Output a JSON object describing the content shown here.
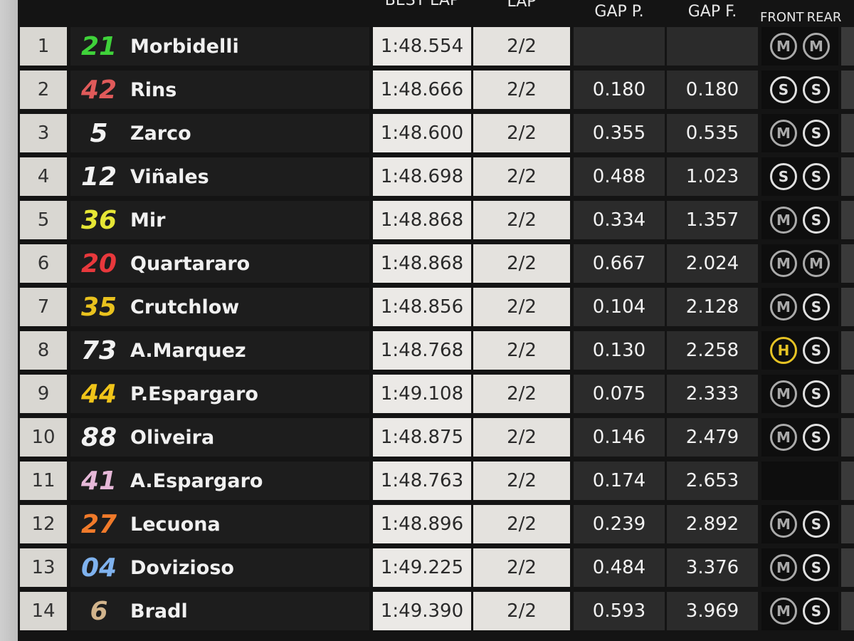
{
  "header": {
    "best_lap": "BEST LAP",
    "lap": "LAP",
    "gap_p": "GAP P.",
    "gap_f": "GAP F.",
    "front": "FRONT",
    "rear": "REAR"
  },
  "rows": [
    {
      "pos": "1",
      "number": "21",
      "number_color": "#3fd23a",
      "name": "Morbidelli",
      "best_lap": "1:48.554",
      "lap": "2/2",
      "gap_p": null,
      "gap_f": null,
      "front": "M",
      "rear": "M"
    },
    {
      "pos": "2",
      "number": "42",
      "number_color": "#e05a5a",
      "name": "Rins",
      "best_lap": "1:48.666",
      "lap": "2/2",
      "gap_p": "0.180",
      "gap_f": "0.180",
      "front": "S",
      "rear": "S"
    },
    {
      "pos": "3",
      "number": "5",
      "number_color": "#f2f2f2",
      "name": "Zarco",
      "best_lap": "1:48.600",
      "lap": "2/2",
      "gap_p": "0.355",
      "gap_f": "0.535",
      "front": "M",
      "rear": "S"
    },
    {
      "pos": "4",
      "number": "12",
      "number_color": "#f2f2f2",
      "name": "Viñales",
      "best_lap": "1:48.698",
      "lap": "2/2",
      "gap_p": "0.488",
      "gap_f": "1.023",
      "front": "S",
      "rear": "S"
    },
    {
      "pos": "5",
      "number": "36",
      "number_color": "#e6e635",
      "name": "Mir",
      "best_lap": "1:48.868",
      "lap": "2/2",
      "gap_p": "0.334",
      "gap_f": "1.357",
      "front": "M",
      "rear": "S"
    },
    {
      "pos": "6",
      "number": "20",
      "number_color": "#e8383c",
      "name": "Quartararo",
      "best_lap": "1:48.868",
      "lap": "2/2",
      "gap_p": "0.667",
      "gap_f": "2.024",
      "front": "M",
      "rear": "M"
    },
    {
      "pos": "7",
      "number": "35",
      "number_color": "#e9c21e",
      "name": "Crutchlow",
      "best_lap": "1:48.856",
      "lap": "2/2",
      "gap_p": "0.104",
      "gap_f": "2.128",
      "front": "M",
      "rear": "S"
    },
    {
      "pos": "8",
      "number": "73",
      "number_color": "#f2f2f2",
      "name": "A.Marquez",
      "best_lap": "1:48.768",
      "lap": "2/2",
      "gap_p": "0.130",
      "gap_f": "2.258",
      "front": "H",
      "rear": "S"
    },
    {
      "pos": "9",
      "number": "44",
      "number_color": "#f0c419",
      "name": "P.Espargaro",
      "best_lap": "1:49.108",
      "lap": "2/2",
      "gap_p": "0.075",
      "gap_f": "2.333",
      "front": "M",
      "rear": "S"
    },
    {
      "pos": "10",
      "number": "88",
      "number_color": "#f2f2f2",
      "name": "Oliveira",
      "best_lap": "1:48.875",
      "lap": "2/2",
      "gap_p": "0.146",
      "gap_f": "2.479",
      "front": "M",
      "rear": "S"
    },
    {
      "pos": "11",
      "number": "41",
      "number_color": "#e6b8d8",
      "name": "A.Espargaro",
      "best_lap": "1:48.763",
      "lap": "2/2",
      "gap_p": "0.174",
      "gap_f": "2.653",
      "front": null,
      "rear": null
    },
    {
      "pos": "12",
      "number": "27",
      "number_color": "#f07a2a",
      "name": "Lecuona",
      "best_lap": "1:48.896",
      "lap": "2/2",
      "gap_p": "0.239",
      "gap_f": "2.892",
      "front": "M",
      "rear": "S"
    },
    {
      "pos": "13",
      "number": "04",
      "number_color": "#7fb2ee",
      "name": "Dovizioso",
      "best_lap": "1:49.225",
      "lap": "2/2",
      "gap_p": "0.484",
      "gap_f": "3.376",
      "front": "M",
      "rear": "S"
    },
    {
      "pos": "14",
      "number": "6",
      "number_color": "#d2b48c",
      "name": "Bradl",
      "best_lap": "1:49.390",
      "lap": "2/2",
      "gap_p": "0.593",
      "gap_f": "3.969",
      "front": "M",
      "rear": "S"
    }
  ]
}
